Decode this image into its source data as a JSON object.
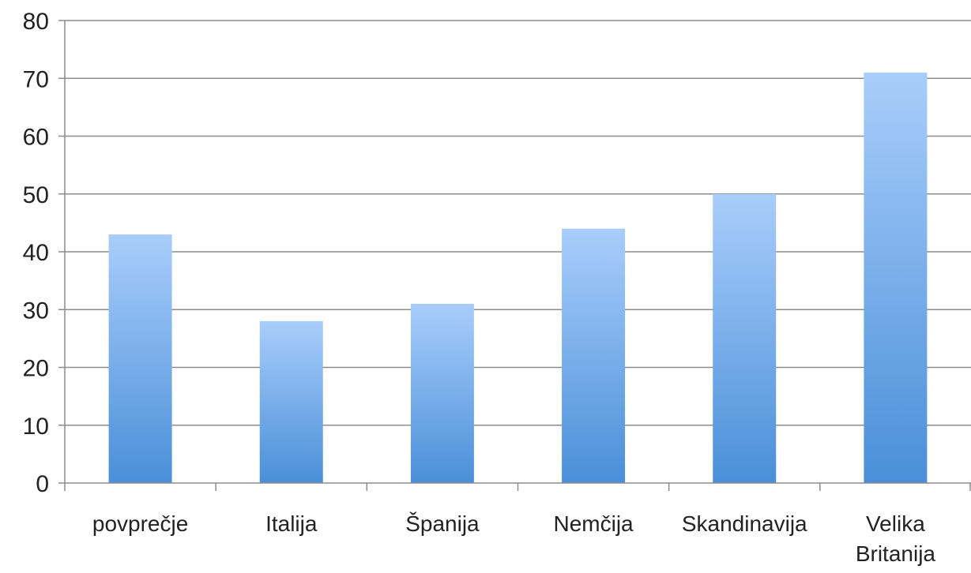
{
  "chart_data": {
    "type": "bar",
    "categories": [
      [
        "povprečje"
      ],
      [
        "Italija"
      ],
      [
        "Španija"
      ],
      [
        "Nemčija"
      ],
      [
        "Skandinavija"
      ],
      [
        "Velika",
        "Britanija"
      ]
    ],
    "values": [
      43,
      28,
      31,
      44,
      50,
      71
    ],
    "ylim": [
      0,
      80
    ],
    "yticks": [
      0,
      10,
      20,
      30,
      40,
      50,
      60,
      70,
      80
    ],
    "grid": true,
    "legend": "none",
    "colors": {
      "bar_top": "#a9cdfb",
      "bar_bottom": "#4a8fd8",
      "grid": "#8c8c8c",
      "axis": "#8c8c8c"
    }
  }
}
